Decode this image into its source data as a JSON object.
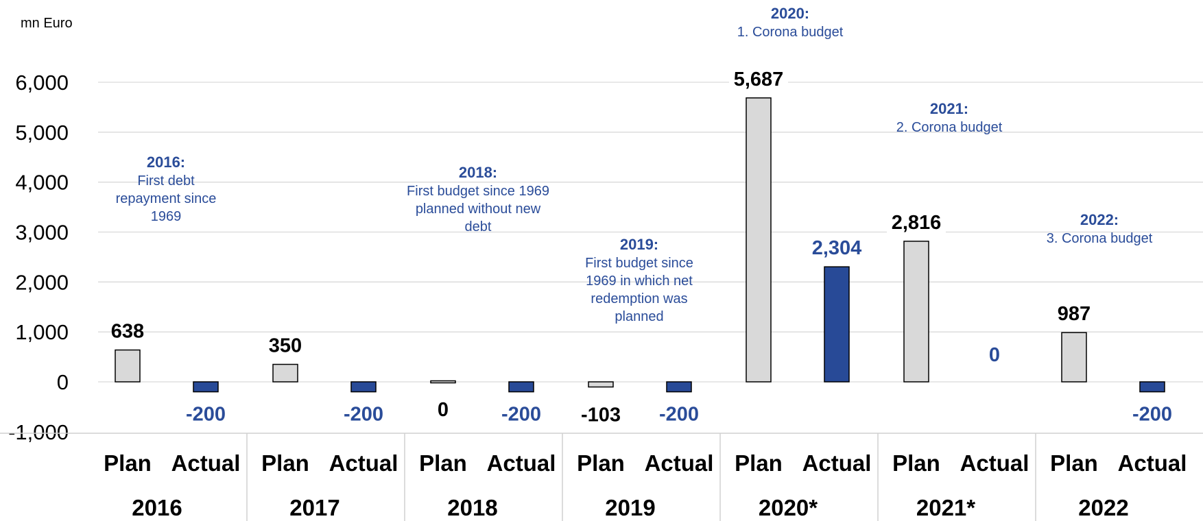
{
  "chart_data": {
    "type": "bar",
    "unit_label": "mn Euro",
    "ylim": [
      -1000,
      6000
    ],
    "yticks": [
      6000,
      5000,
      4000,
      3000,
      2000,
      1000,
      0,
      -1000
    ],
    "ytick_labels": [
      "6,000",
      "5,000",
      "4,000",
      "3,000",
      "2,000",
      "1,000",
      "0",
      "-1,000"
    ],
    "grid": true,
    "categories": [
      "Plan",
      "Actual",
      "Plan",
      "Actual",
      "Plan",
      "Actual",
      "Plan",
      "Actual",
      "Plan",
      "Actual",
      "Plan",
      "Actual",
      "Plan",
      "Actual"
    ],
    "groups": [
      "2016",
      "2017",
      "2018",
      "2019",
      "2020*",
      "2021*",
      "2022"
    ],
    "values": [
      638,
      -200,
      350,
      -200,
      0,
      -200,
      -103,
      -200,
      5687,
      2304,
      2816,
      0,
      987,
      -200
    ],
    "value_labels": [
      "638",
      "-200",
      "350",
      "-200",
      "0",
      "-200",
      "-103",
      "-200",
      "5,687",
      "2,304",
      "2,816",
      "0",
      "987",
      "-200"
    ],
    "series_colors": {
      "Plan": "#d9d9d9",
      "Actual": "#284a97"
    },
    "label_colors": {
      "Plan": "#000000",
      "Actual": "#2a4c99"
    },
    "annotations": [
      {
        "year": "2016:",
        "lines": [
          "First debt",
          "repayment since",
          "1969"
        ]
      },
      {
        "year": "2018:",
        "lines": [
          "First budget since 1969",
          "planned without new",
          "debt"
        ]
      },
      {
        "year": "2019:",
        "lines": [
          "First budget since",
          "1969 in which net",
          "redemption was",
          "planned"
        ]
      },
      {
        "year": "2020:",
        "lines": [
          "1. Corona budget"
        ]
      },
      {
        "year": "2021:",
        "lines": [
          "2. Corona budget"
        ]
      },
      {
        "year": "2022:",
        "lines": [
          "3. Corona budget"
        ]
      }
    ]
  }
}
